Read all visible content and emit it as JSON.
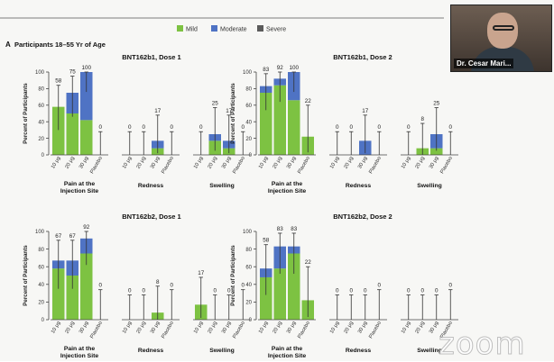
{
  "legend": [
    {
      "name": "Mild",
      "color": "#7dc242"
    },
    {
      "name": "Moderate",
      "color": "#4f73c4"
    },
    {
      "name": "Severe",
      "color": "#5b5b5b"
    }
  ],
  "section_label": "A",
  "section_title": "Participants 18–55 Yr of Age",
  "ylabel": "Percent of Participants",
  "yticks": [
    0,
    20,
    40,
    60,
    80,
    100
  ],
  "groups": [
    "Pain at the Injection Site",
    "Redness",
    "Swelling"
  ],
  "doses": [
    "10 μg",
    "20 μg",
    "30 μg",
    "Placebo"
  ],
  "video": {
    "participant_name": "Dr. Cesar Mari..."
  },
  "watermark": "zoom",
  "chart_data": [
    {
      "type": "bar",
      "title": "BNT162b1, Dose 1",
      "ylim": [
        0,
        100
      ],
      "bars": [
        {
          "group": "Pain at the Injection Site",
          "dose": "10 μg",
          "mild": 58,
          "moderate": 0,
          "severe": 0,
          "label": "58",
          "ci": [
            30,
            84
          ]
        },
        {
          "group": "Pain at the Injection Site",
          "dose": "20 μg",
          "mild": 50,
          "moderate": 25,
          "severe": 0,
          "label": "75",
          "ci": [
            46,
            95
          ]
        },
        {
          "group": "Pain at the Injection Site",
          "dose": "30 μg",
          "mild": 42,
          "moderate": 58,
          "severe": 0,
          "label": "100",
          "ci": [
            76,
            100
          ]
        },
        {
          "group": "Pain at the Injection Site",
          "dose": "Placebo",
          "mild": 0,
          "moderate": 0,
          "severe": 0,
          "label": "0",
          "ci": [
            0,
            28
          ]
        },
        {
          "group": "Redness",
          "dose": "10 μg",
          "mild": 0,
          "moderate": 0,
          "severe": 0,
          "label": "0",
          "ci": [
            0,
            28
          ]
        },
        {
          "group": "Redness",
          "dose": "20 μg",
          "mild": 0,
          "moderate": 0,
          "severe": 0,
          "label": "0",
          "ci": [
            0,
            28
          ]
        },
        {
          "group": "Redness",
          "dose": "30 μg",
          "mild": 8,
          "moderate": 9,
          "severe": 0,
          "label": "17",
          "ci": [
            2,
            48
          ]
        },
        {
          "group": "Redness",
          "dose": "Placebo",
          "mild": 0,
          "moderate": 0,
          "severe": 0,
          "label": "0",
          "ci": [
            0,
            28
          ]
        },
        {
          "group": "Swelling",
          "dose": "10 μg",
          "mild": 0,
          "moderate": 0,
          "severe": 0,
          "label": "0",
          "ci": [
            0,
            28
          ]
        },
        {
          "group": "Swelling",
          "dose": "20 μg",
          "mild": 17,
          "moderate": 8,
          "severe": 0,
          "label": "25",
          "ci": [
            5,
            57
          ]
        },
        {
          "group": "Swelling",
          "dose": "30 μg",
          "mild": 8,
          "moderate": 9,
          "severe": 0,
          "label": "17",
          "ci": [
            2,
            48
          ]
        },
        {
          "group": "Swelling",
          "dose": "Placebo",
          "mild": 0,
          "moderate": 0,
          "severe": 0,
          "label": "0",
          "ci": [
            0,
            28
          ]
        }
      ]
    },
    {
      "type": "bar",
      "title": "BNT162b1, Dose 2",
      "ylim": [
        0,
        100
      ],
      "bars": [
        {
          "group": "Pain at the Injection Site",
          "dose": "10 μg",
          "mild": 75,
          "moderate": 8,
          "severe": 0,
          "label": "83",
          "ci": [
            54,
            98
          ]
        },
        {
          "group": "Pain at the Injection Site",
          "dose": "20 μg",
          "mild": 84,
          "moderate": 8,
          "severe": 0,
          "label": "92",
          "ci": [
            64,
            100
          ]
        },
        {
          "group": "Pain at the Injection Site",
          "dose": "30 μg",
          "mild": 66,
          "moderate": 34,
          "severe": 0,
          "label": "100",
          "ci": [
            76,
            100
          ]
        },
        {
          "group": "Pain at the Injection Site",
          "dose": "Placebo",
          "mild": 22,
          "moderate": 0,
          "severe": 0,
          "label": "22",
          "ci": [
            3,
            60
          ]
        },
        {
          "group": "Redness",
          "dose": "10 μg",
          "mild": 0,
          "moderate": 0,
          "severe": 0,
          "label": "0",
          "ci": [
            0,
            28
          ]
        },
        {
          "group": "Redness",
          "dose": "20 μg",
          "mild": 0,
          "moderate": 0,
          "severe": 0,
          "label": "0",
          "ci": [
            0,
            28
          ]
        },
        {
          "group": "Redness",
          "dose": "30 μg",
          "mild": 0,
          "moderate": 17,
          "severe": 0,
          "label": "17",
          "ci": [
            2,
            48
          ]
        },
        {
          "group": "Redness",
          "dose": "Placebo",
          "mild": 0,
          "moderate": 0,
          "severe": 0,
          "label": "0",
          "ci": [
            0,
            28
          ]
        },
        {
          "group": "Swelling",
          "dose": "10 μg",
          "mild": 0,
          "moderate": 0,
          "severe": 0,
          "label": "0",
          "ci": [
            0,
            28
          ]
        },
        {
          "group": "Swelling",
          "dose": "20 μg",
          "mild": 8,
          "moderate": 0,
          "severe": 0,
          "label": "8",
          "ci": [
            0,
            38
          ]
        },
        {
          "group": "Swelling",
          "dose": "30 μg",
          "mild": 8,
          "moderate": 17,
          "severe": 0,
          "label": "25",
          "ci": [
            5,
            57
          ]
        },
        {
          "group": "Swelling",
          "dose": "Placebo",
          "mild": 0,
          "moderate": 0,
          "severe": 0,
          "label": "0",
          "ci": [
            0,
            28
          ]
        }
      ]
    },
    {
      "type": "bar",
      "title": "BNT162b2, Dose 1",
      "ylim": [
        0,
        100
      ],
      "bars": [
        {
          "group": "Pain at the Injection Site",
          "dose": "10 μg",
          "mild": 58,
          "moderate": 9,
          "severe": 0,
          "label": "67",
          "ci": [
            35,
            90
          ]
        },
        {
          "group": "Pain at the Injection Site",
          "dose": "20 μg",
          "mild": 50,
          "moderate": 17,
          "severe": 0,
          "label": "67",
          "ci": [
            35,
            90
          ]
        },
        {
          "group": "Pain at the Injection Site",
          "dose": "30 μg",
          "mild": 75,
          "moderate": 17,
          "severe": 0,
          "label": "92",
          "ci": [
            62,
            100
          ]
        },
        {
          "group": "Pain at the Injection Site",
          "dose": "Placebo",
          "mild": 0,
          "moderate": 0,
          "severe": 0,
          "label": "0",
          "ci": [
            0,
            34
          ]
        },
        {
          "group": "Redness",
          "dose": "10 μg",
          "mild": 0,
          "moderate": 0,
          "severe": 0,
          "label": "0",
          "ci": [
            0,
            28
          ]
        },
        {
          "group": "Redness",
          "dose": "20 μg",
          "mild": 0,
          "moderate": 0,
          "severe": 0,
          "label": "0",
          "ci": [
            0,
            28
          ]
        },
        {
          "group": "Redness",
          "dose": "30 μg",
          "mild": 8,
          "moderate": 0,
          "severe": 0,
          "label": "8",
          "ci": [
            0,
            38
          ]
        },
        {
          "group": "Redness",
          "dose": "Placebo",
          "mild": 0,
          "moderate": 0,
          "severe": 0,
          "label": "0",
          "ci": [
            0,
            34
          ]
        },
        {
          "group": "Swelling",
          "dose": "10 μg",
          "mild": 17,
          "moderate": 0,
          "severe": 0,
          "label": "17",
          "ci": [
            2,
            48
          ]
        },
        {
          "group": "Swelling",
          "dose": "20 μg",
          "mild": 0,
          "moderate": 0,
          "severe": 0,
          "label": "0",
          "ci": [
            0,
            28
          ]
        },
        {
          "group": "Swelling",
          "dose": "30 μg",
          "mild": 0,
          "moderate": 0,
          "severe": 0,
          "label": "0",
          "ci": [
            0,
            28
          ]
        },
        {
          "group": "Swelling",
          "dose": "Placebo",
          "mild": 0,
          "moderate": 0,
          "severe": 0,
          "label": "0",
          "ci": [
            0,
            34
          ]
        }
      ]
    },
    {
      "type": "bar",
      "title": "BNT162b2, Dose 2",
      "ylim": [
        0,
        100
      ],
      "bars": [
        {
          "group": "Pain at the Injection Site",
          "dose": "10 μg",
          "mild": 48,
          "moderate": 10,
          "severe": 0,
          "label": "58",
          "ci": [
            28,
            85
          ]
        },
        {
          "group": "Pain at the Injection Site",
          "dose": "20 μg",
          "mild": 58,
          "moderate": 25,
          "severe": 0,
          "label": "83",
          "ci": [
            52,
            98
          ]
        },
        {
          "group": "Pain at the Injection Site",
          "dose": "30 μg",
          "mild": 75,
          "moderate": 8,
          "severe": 0,
          "label": "83",
          "ci": [
            52,
            98
          ]
        },
        {
          "group": "Pain at the Injection Site",
          "dose": "Placebo",
          "mild": 22,
          "moderate": 0,
          "severe": 0,
          "label": "22",
          "ci": [
            3,
            60
          ]
        },
        {
          "group": "Redness",
          "dose": "10 μg",
          "mild": 0,
          "moderate": 0,
          "severe": 0,
          "label": "0",
          "ci": [
            0,
            28
          ]
        },
        {
          "group": "Redness",
          "dose": "20 μg",
          "mild": 0,
          "moderate": 0,
          "severe": 0,
          "label": "0",
          "ci": [
            0,
            28
          ]
        },
        {
          "group": "Redness",
          "dose": "30 μg",
          "mild": 0,
          "moderate": 0,
          "severe": 0,
          "label": "0",
          "ci": [
            0,
            28
          ]
        },
        {
          "group": "Redness",
          "dose": "Placebo",
          "mild": 0,
          "moderate": 0,
          "severe": 0,
          "label": "0",
          "ci": [
            0,
            34
          ]
        },
        {
          "group": "Swelling",
          "dose": "10 μg",
          "mild": 0,
          "moderate": 0,
          "severe": 0,
          "label": "0",
          "ci": [
            0,
            28
          ]
        },
        {
          "group": "Swelling",
          "dose": "20 μg",
          "mild": 0,
          "moderate": 0,
          "severe": 0,
          "label": "0",
          "ci": [
            0,
            28
          ]
        },
        {
          "group": "Swelling",
          "dose": "30 μg",
          "mild": 0,
          "moderate": 0,
          "severe": 0,
          "label": "0",
          "ci": [
            0,
            28
          ]
        },
        {
          "group": "Swelling",
          "dose": "Placebo",
          "mild": 0,
          "moderate": 0,
          "severe": 0,
          "label": "0",
          "ci": [
            0,
            34
          ]
        }
      ]
    }
  ]
}
